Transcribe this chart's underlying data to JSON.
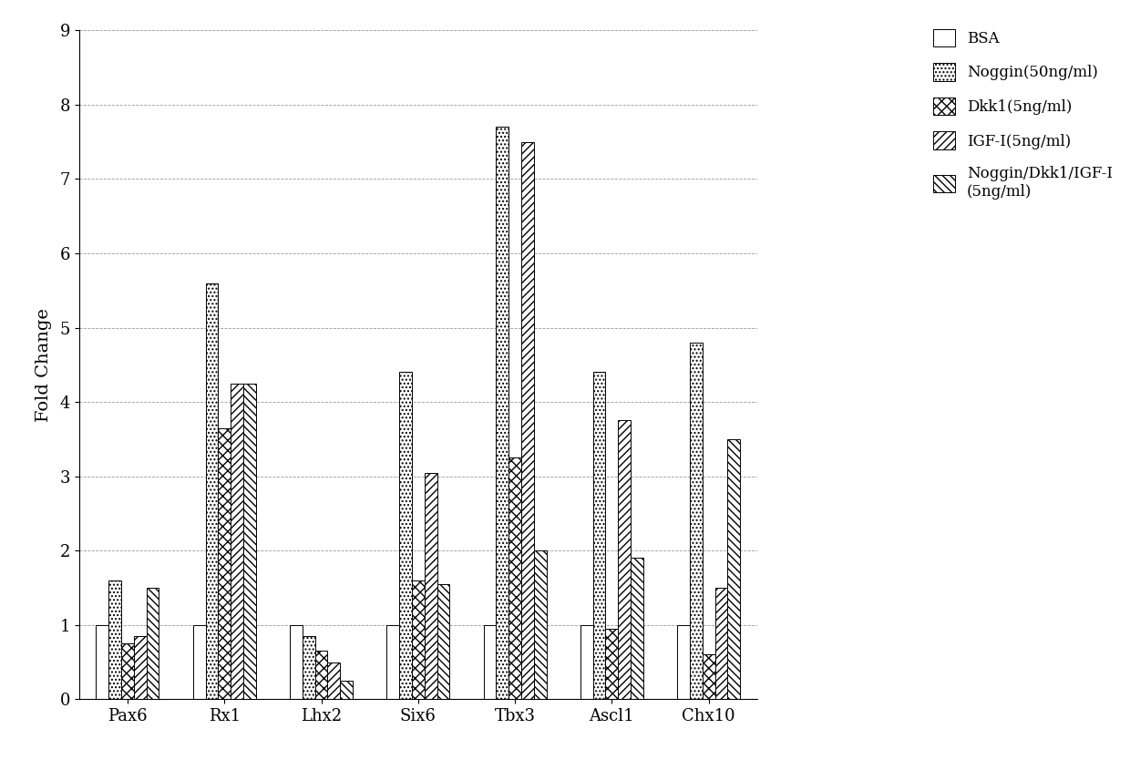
{
  "categories": [
    "Pax6",
    "Rx1",
    "Lhx2",
    "Six6",
    "Tbx3",
    "Ascl1",
    "Chx10"
  ],
  "series_labels": [
    "BSA",
    "Noggin(50ng/ml)",
    "Dkk1(5ng/ml)",
    "IGF-I(5ng/ml)",
    "Noggin/Dkk1/IGF-I\n(5ng/ml)"
  ],
  "values": [
    [
      1.0,
      1.0,
      1.0,
      1.0,
      1.0,
      1.0,
      1.0
    ],
    [
      1.6,
      5.6,
      0.85,
      4.4,
      7.7,
      4.4,
      4.8
    ],
    [
      0.75,
      3.65,
      0.65,
      1.6,
      3.25,
      0.95,
      0.6
    ],
    [
      0.85,
      4.25,
      0.5,
      3.05,
      7.5,
      3.75,
      1.5
    ],
    [
      1.5,
      4.25,
      0.25,
      1.55,
      2.0,
      1.9,
      3.5
    ]
  ],
  "ylabel": "Fold Change",
  "ylim": [
    0,
    9
  ],
  "yticks": [
    0,
    1,
    2,
    3,
    4,
    5,
    6,
    7,
    8,
    9
  ],
  "background_color": "#ffffff",
  "bar_width": 0.13,
  "figsize": [
    12.4,
    8.34
  ],
  "dpi": 100,
  "face_colors": [
    "white",
    "white",
    "white",
    "white",
    "white"
  ],
  "hatch_patterns": [
    "",
    "....",
    "xxx",
    "////",
    "\\\\\\\\"
  ],
  "edge_colors": [
    "black",
    "black",
    "black",
    "black",
    "black"
  ]
}
